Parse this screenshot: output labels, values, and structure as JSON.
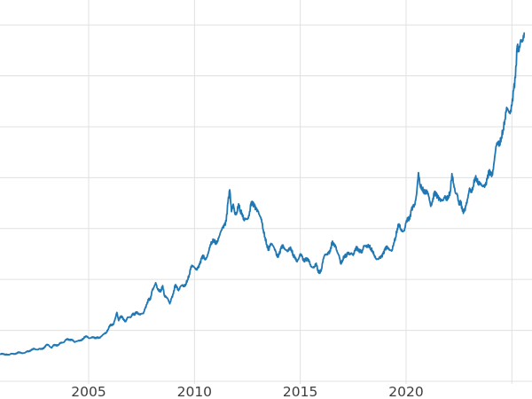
{
  "chart_data": {
    "type": "line",
    "title": "",
    "xlabel": "",
    "ylabel": "",
    "legend": false,
    "grid": true,
    "x_tick_labels": [
      "2005",
      "2010",
      "2015",
      "2020"
    ],
    "x_tick_years": [
      2005,
      2010,
      2015,
      2020
    ],
    "x_grid_years": [
      2005,
      2010,
      2015,
      2020,
      2025
    ],
    "y_grid_values": [
      0,
      500,
      1000,
      1500,
      2000,
      2500,
      3000,
      3500
    ],
    "xlim": [
      2000.81,
      2025.95
    ],
    "ylim": [
      0,
      3745
    ],
    "series": [
      {
        "name": "series-1",
        "x_start": 2000.75,
        "x_step": 0.0833333,
        "values": [
          270,
          266,
          272,
          266,
          262,
          263,
          260,
          272,
          270,
          267,
          272,
          283,
          283,
          276,
          276,
          281,
          295,
          294,
          302,
          314,
          321,
          313,
          310,
          319,
          317,
          319,
          333,
          357,
          359,
          340,
          328,
          355,
          357,
          351,
          360,
          379,
          379,
          383,
          407,
          414,
          405,
          407,
          404,
          384,
          392,
          398,
          401,
          405,
          420,
          439,
          442,
          424,
          423,
          434,
          429,
          422,
          431,
          424,
          437,
          456,
          470,
          477,
          510,
          550,
          555,
          557,
          611,
          676,
          596,
          634,
          632,
          599,
          586,
          627,
          630,
          631,
          665,
          655,
          680,
          667,
          656,
          665,
          666,
          713,
          755,
          806,
          803,
          890,
          922,
          968,
          910,
          889,
          889,
          940,
          839,
          829,
          807,
          761,
          816,
          858,
          943,
          924,
          890,
          929,
          946,
          934,
          950,
          997,
          1043,
          1127,
          1135,
          1118,
          1095,
          1113,
          1149,
          1205,
          1233,
          1193,
          1216,
          1271,
          1342,
          1370,
          1391,
          1356,
          1373,
          1424,
          1474,
          1510,
          1529,
          1573,
          1756,
          1880,
          1666,
          1739,
          1640,
          1656,
          1743,
          1674,
          1650,
          1586,
          1599,
          1590,
          1626,
          1744,
          1747,
          1721,
          1688,
          1671,
          1627,
          1593,
          1487,
          1414,
          1343,
          1287,
          1347,
          1348,
          1316,
          1276,
          1221,
          1244,
          1301,
          1336,
          1299,
          1288,
          1279,
          1311,
          1296,
          1237,
          1222,
          1176,
          1201,
          1251,
          1227,
          1178,
          1197,
          1198,
          1181,
          1128,
          1117,
          1125,
          1159,
          1086,
          1068,
          1098,
          1200,
          1246,
          1242,
          1260,
          1276,
          1366,
          1340,
          1327,
          1266,
          1236,
          1152,
          1192,
          1234,
          1231,
          1266,
          1246,
          1260,
          1237,
          1283,
          1315,
          1280,
          1282,
          1264,
          1331,
          1330,
          1325,
          1335,
          1303,
          1281,
          1238,
          1202,
          1198,
          1215,
          1221,
          1250,
          1292,
          1320,
          1301,
          1286,
          1284,
          1359,
          1413,
          1500,
          1546,
          1495,
          1471,
          1479,
          1561,
          1597,
          1592,
          1683,
          1716,
          1732,
          1843,
          2050,
          1922,
          1900,
          1866,
          1858,
          1867,
          1808,
          1718,
          1762,
          1850,
          1835,
          1807,
          1784,
          1776,
          1777,
          1820,
          1787,
          1817,
          1856,
          2040,
          1937,
          1848,
          1836,
          1733,
          1765,
          1671,
          1665,
          1725,
          1797,
          1898,
          1855,
          1913,
          1999,
          1992,
          1943,
          1951,
          1919,
          1915,
          1921,
          1984,
          2060,
          2034,
          2025,
          2158,
          2307,
          2351,
          2327,
          2398,
          2470,
          2568,
          2690,
          2657,
          2629,
          2708,
          2858,
          2983,
          3290,
          3240,
          3353,
          3338,
          3420
        ]
      }
    ]
  },
  "colors": {
    "line": "#1f77b4",
    "grid": "#e0e0e0",
    "tick_label": "#3d3d3d",
    "background": "#ffffff"
  }
}
